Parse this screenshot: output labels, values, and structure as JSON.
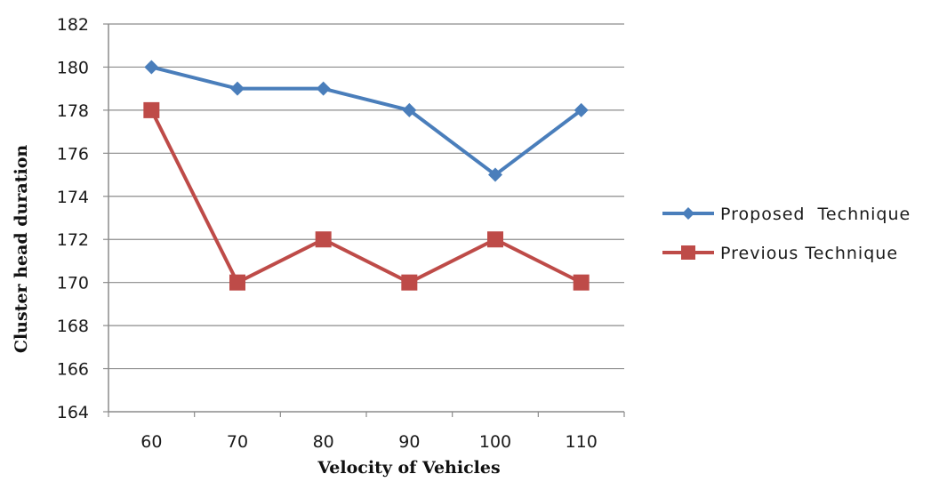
{
  "chart_data": {
    "type": "line",
    "title": "",
    "xlabel": "Velocity of Vehicles",
    "ylabel": "Cluster head duration",
    "categories": [
      "60",
      "70",
      "80",
      "90",
      "100",
      "110"
    ],
    "ylim": [
      164,
      182
    ],
    "ytick_step": 2,
    "grid": true,
    "legend_position": "right",
    "series": [
      {
        "name": "Proposed  Technique",
        "values": [
          180,
          179,
          179,
          178,
          175,
          178
        ],
        "color": "#4a7ebb",
        "marker": "diamond"
      },
      {
        "name": "Previous Technique",
        "values": [
          178,
          170,
          172,
          170,
          172,
          170
        ],
        "color": "#be4b48",
        "marker": "square"
      }
    ]
  }
}
